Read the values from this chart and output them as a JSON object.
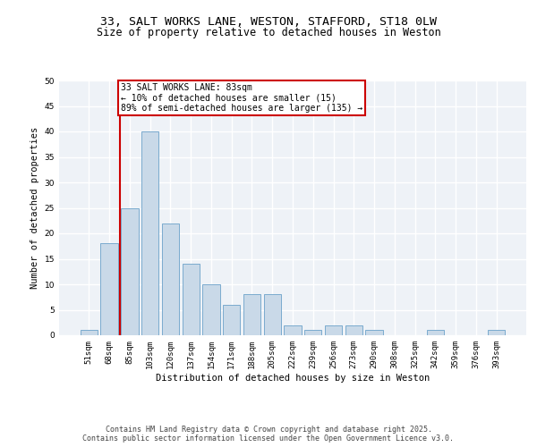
{
  "title_line1": "33, SALT WORKS LANE, WESTON, STAFFORD, ST18 0LW",
  "title_line2": "Size of property relative to detached houses in Weston",
  "xlabel": "Distribution of detached houses by size in Weston",
  "ylabel": "Number of detached properties",
  "categories": [
    "51sqm",
    "68sqm",
    "85sqm",
    "103sqm",
    "120sqm",
    "137sqm",
    "154sqm",
    "171sqm",
    "188sqm",
    "205sqm",
    "222sqm",
    "239sqm",
    "256sqm",
    "273sqm",
    "290sqm",
    "308sqm",
    "325sqm",
    "342sqm",
    "359sqm",
    "376sqm",
    "393sqm"
  ],
  "values": [
    1,
    18,
    25,
    40,
    22,
    14,
    10,
    6,
    8,
    8,
    2,
    1,
    2,
    2,
    1,
    0,
    0,
    1,
    0,
    0,
    1
  ],
  "bar_color": "#c9d9e8",
  "bar_edge_color": "#7aabce",
  "vline_x_index": 2,
  "vline_color": "#cc0000",
  "annotation_text": "33 SALT WORKS LANE: 83sqm\n← 10% of detached houses are smaller (15)\n89% of semi-detached houses are larger (135) →",
  "annotation_box_color": "#ffffff",
  "annotation_box_edge_color": "#cc0000",
  "ylim": [
    0,
    50
  ],
  "yticks": [
    0,
    5,
    10,
    15,
    20,
    25,
    30,
    35,
    40,
    45,
    50
  ],
  "background_color": "#eef2f7",
  "grid_color": "#ffffff",
  "footer_text": "Contains HM Land Registry data © Crown copyright and database right 2025.\nContains public sector information licensed under the Open Government Licence v3.0.",
  "title_fontsize": 9.5,
  "subtitle_fontsize": 8.5,
  "axis_label_fontsize": 7.5,
  "tick_fontsize": 6.5,
  "annotation_fontsize": 7,
  "footer_fontsize": 6
}
